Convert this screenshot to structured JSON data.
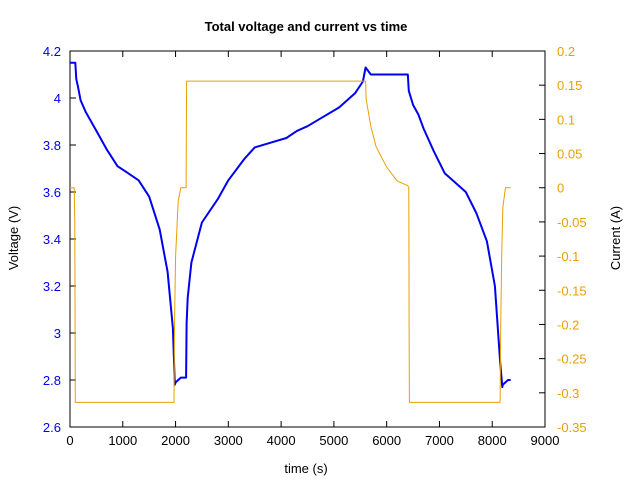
{
  "chart_data": {
    "type": "line",
    "title": "Total voltage and current vs time",
    "xlabel": "time (s)",
    "ylabel_left": "Voltage (V)",
    "ylabel_right": "Current (A)",
    "xlim": [
      0,
      9000
    ],
    "ylim_left": [
      2.6,
      4.2
    ],
    "ylim_right": [
      -0.35,
      0.2
    ],
    "x_ticks": [
      "0",
      "1000",
      "2000",
      "3000",
      "4000",
      "5000",
      "6000",
      "7000",
      "8000",
      "9000"
    ],
    "y_left_ticks": [
      "2.6",
      "2.8",
      "3",
      "3.2",
      "3.4",
      "3.6",
      "3.8",
      "4",
      "4.2"
    ],
    "y_right_ticks": [
      "-0.35",
      "-0.3",
      "-0.25",
      "-0.2",
      "-0.15",
      "-0.1",
      "-0.05",
      "0",
      "0.05",
      "0.1",
      "0.15",
      "0.2"
    ],
    "grid": false,
    "colors": {
      "voltage": "#0000ee",
      "current": "#e8a000",
      "left_axis": "#0000ee",
      "right_axis": "#e8a000"
    },
    "series": [
      {
        "axis": "left",
        "x": [
          0,
          100,
          120,
          150,
          200,
          300,
          500,
          700,
          900,
          1100,
          1300,
          1500,
          1700,
          1850,
          1950,
          1985,
          2000,
          2100,
          2200,
          2210,
          2230,
          2300,
          2500,
          2800,
          3000,
          3300,
          3500,
          3800,
          4100,
          4300,
          4500,
          4800,
          5100,
          5400,
          5550,
          5600,
          5700,
          6000,
          6300,
          6400,
          6420,
          6500,
          6600,
          6700,
          6900,
          7100,
          7300,
          7500,
          7700,
          7900,
          8050,
          8150,
          8190,
          8200,
          8250,
          8300,
          8350
        ],
        "y": [
          4.15,
          4.15,
          4.08,
          4.05,
          3.99,
          3.94,
          3.86,
          3.78,
          3.71,
          3.68,
          3.65,
          3.58,
          3.44,
          3.26,
          3.02,
          2.78,
          2.79,
          2.81,
          2.81,
          3.04,
          3.15,
          3.3,
          3.47,
          3.57,
          3.65,
          3.74,
          3.79,
          3.81,
          3.83,
          3.86,
          3.88,
          3.92,
          3.96,
          4.02,
          4.07,
          4.13,
          4.1,
          4.1,
          4.1,
          4.1,
          4.03,
          3.97,
          3.93,
          3.87,
          3.77,
          3.68,
          3.64,
          3.6,
          3.51,
          3.39,
          3.2,
          2.88,
          2.77,
          2.78,
          2.79,
          2.8,
          2.8
        ]
      },
      {
        "axis": "right",
        "x": [
          0,
          80,
          90,
          100,
          120,
          1970,
          1980,
          2000,
          2050,
          2100,
          2200,
          2210,
          2220,
          3000,
          4000,
          5000,
          5600,
          5610,
          5700,
          5800,
          6000,
          6200,
          6400,
          6420,
          6425,
          6430,
          8150,
          8160,
          8180,
          8200,
          8250,
          8300,
          8350
        ],
        "y": [
          0.0,
          0.0,
          -0.05,
          -0.314,
          -0.314,
          -0.314,
          -0.2,
          -0.1,
          -0.02,
          0.0,
          0.0,
          0.156,
          0.156,
          0.156,
          0.156,
          0.156,
          0.156,
          0.13,
          0.09,
          0.06,
          0.03,
          0.01,
          0.003,
          0.0,
          -0.2,
          -0.314,
          -0.314,
          -0.2,
          -0.1,
          -0.03,
          0.0,
          0.0,
          0.0
        ]
      }
    ]
  }
}
